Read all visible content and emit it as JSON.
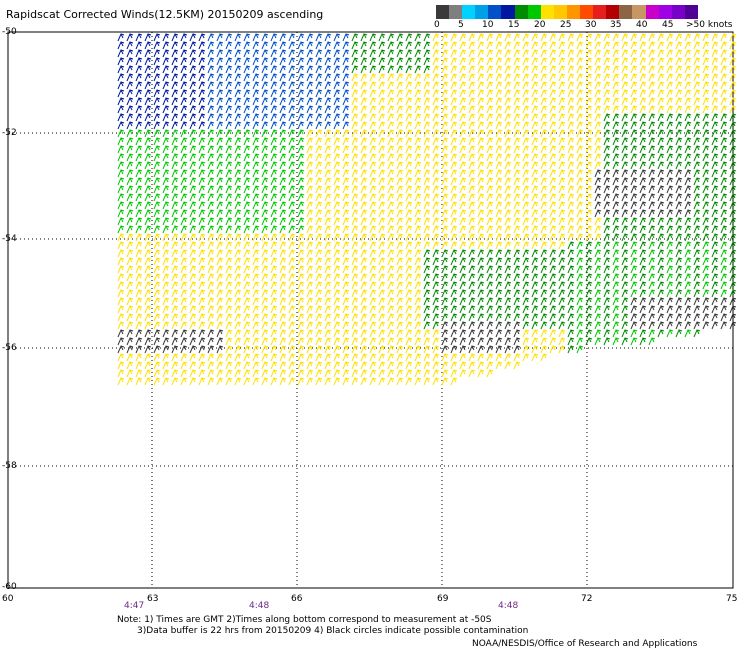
{
  "title": "Rapidscat Corrected Winds(12.5KM) 20150209 ascending",
  "colorbar": {
    "colors": [
      "#3a3a3a",
      "#7f7f7f",
      "#00d2ff",
      "#00a0e8",
      "#0050c8",
      "#0018a0",
      "#008c00",
      "#00c800",
      "#ffe100",
      "#ffc800",
      "#ff9600",
      "#ff4b00",
      "#e61e1e",
      "#b40000",
      "#8c6446",
      "#c89664",
      "#c800c8",
      "#a000e6",
      "#7800c8",
      "#500096"
    ],
    "labels": [
      "0",
      "5",
      "10",
      "15",
      "20",
      "25",
      "30",
      "35",
      "40",
      "45",
      ">50 knots"
    ]
  },
  "latitudes": [
    "-50",
    "-52",
    "-54",
    "-56",
    "-58",
    "-60"
  ],
  "longitudes": [
    "60",
    "63",
    "66",
    "69",
    "72",
    "75"
  ],
  "times": [
    "4:47",
    "4:48",
    "4:48"
  ],
  "notes": "Note: 1) Times are GMT 2)Times along bottom correspond to measurement at -50S\n       3)Data buffer is 22 hrs from 20150209 4) Black circles indicate possible contamination",
  "credit": "NOAA/NESDIS/Office of Research and Applications"
}
